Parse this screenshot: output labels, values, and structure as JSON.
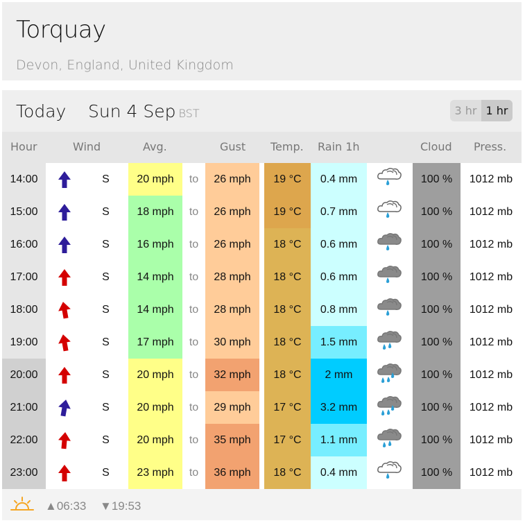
{
  "location": {
    "name": "Torquay",
    "region": "Devon, England, United Kingdom"
  },
  "forecast_header": {
    "day_label": "Today",
    "date": "Sun 4 Sep",
    "timezone": "BST",
    "interval_options": [
      "3 hr",
      "1 hr"
    ],
    "selected_interval": "1 hr"
  },
  "columns": [
    "Hour",
    "Wind",
    "Avg.",
    "Gust",
    "Temp.",
    "Rain 1h",
    "Cloud",
    "Press."
  ],
  "to_label": "to",
  "rows": [
    {
      "hour": "14:00",
      "arrow_color": "#2e1d9a",
      "arrow_rot": 0,
      "dir": "S",
      "avg": "20 mph",
      "avg_bg": "#ffff88",
      "gust": "26 mph",
      "gust_bg": "#ffcc99",
      "temp": "19 °C",
      "temp_bg": "#dda64d",
      "rain": "0.4 mm",
      "rain_bg": "#ccffff",
      "icon": "light-rain-cloud-outline",
      "cloud": "100 %",
      "press": "1012 mb",
      "hour_dark": false
    },
    {
      "hour": "15:00",
      "arrow_color": "#2e1d9a",
      "arrow_rot": 0,
      "dir": "S",
      "avg": "18 mph",
      "avg_bg": "#aaffaa",
      "gust": "26 mph",
      "gust_bg": "#ffcc99",
      "temp": "19 °C",
      "temp_bg": "#dda64d",
      "rain": "0.7 mm",
      "rain_bg": "#ccffff",
      "icon": "light-rain-cloud-outline",
      "cloud": "100 %",
      "press": "1012 mb",
      "hour_dark": false
    },
    {
      "hour": "16:00",
      "arrow_color": "#2e1d9a",
      "arrow_rot": 0,
      "dir": "S",
      "avg": "16 mph",
      "avg_bg": "#aaffaa",
      "gust": "26 mph",
      "gust_bg": "#ffcc99",
      "temp": "18 °C",
      "temp_bg": "#ddb355",
      "rain": "0.6 mm",
      "rain_bg": "#ccffff",
      "icon": "light-rain-cloud-grey",
      "cloud": "100 %",
      "press": "1012 mb",
      "hour_dark": false
    },
    {
      "hour": "17:00",
      "arrow_color": "#d40000",
      "arrow_rot": 0,
      "dir": "S",
      "avg": "14 mph",
      "avg_bg": "#aaffaa",
      "gust": "28 mph",
      "gust_bg": "#ffcc99",
      "temp": "18 °C",
      "temp_bg": "#ddb355",
      "rain": "0.6 mm",
      "rain_bg": "#ccffff",
      "icon": "light-rain-cloud-grey",
      "cloud": "100 %",
      "press": "1012 mb",
      "hour_dark": false
    },
    {
      "hour": "18:00",
      "arrow_color": "#d40000",
      "arrow_rot": -10,
      "dir": "S",
      "avg": "14 mph",
      "avg_bg": "#aaffaa",
      "gust": "28 mph",
      "gust_bg": "#ffcc99",
      "temp": "18 °C",
      "temp_bg": "#ddb355",
      "rain": "0.8 mm",
      "rain_bg": "#ccffff",
      "icon": "light-rain-cloud-grey",
      "cloud": "100 %",
      "press": "1012 mb",
      "hour_dark": false
    },
    {
      "hour": "19:00",
      "arrow_color": "#d40000",
      "arrow_rot": -10,
      "dir": "S",
      "avg": "17 mph",
      "avg_bg": "#aaffaa",
      "gust": "30 mph",
      "gust_bg": "#ffcc99",
      "temp": "18 °C",
      "temp_bg": "#ddb355",
      "rain": "1.5 mm",
      "rain_bg": "#77eeff",
      "icon": "moderate-rain-cloud-grey",
      "cloud": "100 %",
      "press": "1012 mb",
      "hour_dark": false
    },
    {
      "hour": "20:00",
      "arrow_color": "#d40000",
      "arrow_rot": 0,
      "dir": "S",
      "avg": "20 mph",
      "avg_bg": "#ffff88",
      "gust": "32 mph",
      "gust_bg": "#f2a270",
      "temp": "18 °C",
      "temp_bg": "#ddb355",
      "rain": "2 mm",
      "rain_bg": "#00ccff",
      "icon": "heavy-rain-cloud-grey",
      "cloud": "100 %",
      "press": "1012 mb",
      "hour_dark": true
    },
    {
      "hour": "21:00",
      "arrow_color": "#2e1d9a",
      "arrow_rot": 10,
      "dir": "S",
      "avg": "20 mph",
      "avg_bg": "#ffff88",
      "gust": "29 mph",
      "gust_bg": "#ffcc99",
      "temp": "17 °C",
      "temp_bg": "#ddb355",
      "rain": "3.2 mm",
      "rain_bg": "#00ccff",
      "icon": "heavy-rain-cloud-grey",
      "cloud": "100 %",
      "press": "1012 mb",
      "hour_dark": true
    },
    {
      "hour": "22:00",
      "arrow_color": "#d40000",
      "arrow_rot": 5,
      "dir": "S",
      "avg": "20 mph",
      "avg_bg": "#ffff88",
      "gust": "35 mph",
      "gust_bg": "#f2a270",
      "temp": "17 °C",
      "temp_bg": "#ddb355",
      "rain": "1.1 mm",
      "rain_bg": "#77eeff",
      "icon": "moderate-rain-cloud-grey",
      "cloud": "100 %",
      "press": "1012 mb",
      "hour_dark": true
    },
    {
      "hour": "23:00",
      "arrow_color": "#d40000",
      "arrow_rot": 0,
      "dir": "S",
      "avg": "23 mph",
      "avg_bg": "#ffff88",
      "gust": "36 mph",
      "gust_bg": "#f2a270",
      "temp": "18 °C",
      "temp_bg": "#ddb355",
      "rain": "0.4 mm",
      "rain_bg": "#ccffff",
      "icon": "light-rain-cloud-outline",
      "cloud": "100 %",
      "press": "1012 mb",
      "hour_dark": true
    }
  ],
  "footer": {
    "sun_icon": "sunrise-icon",
    "sunrise": "▲06:33",
    "sunset": "▼19:53"
  }
}
